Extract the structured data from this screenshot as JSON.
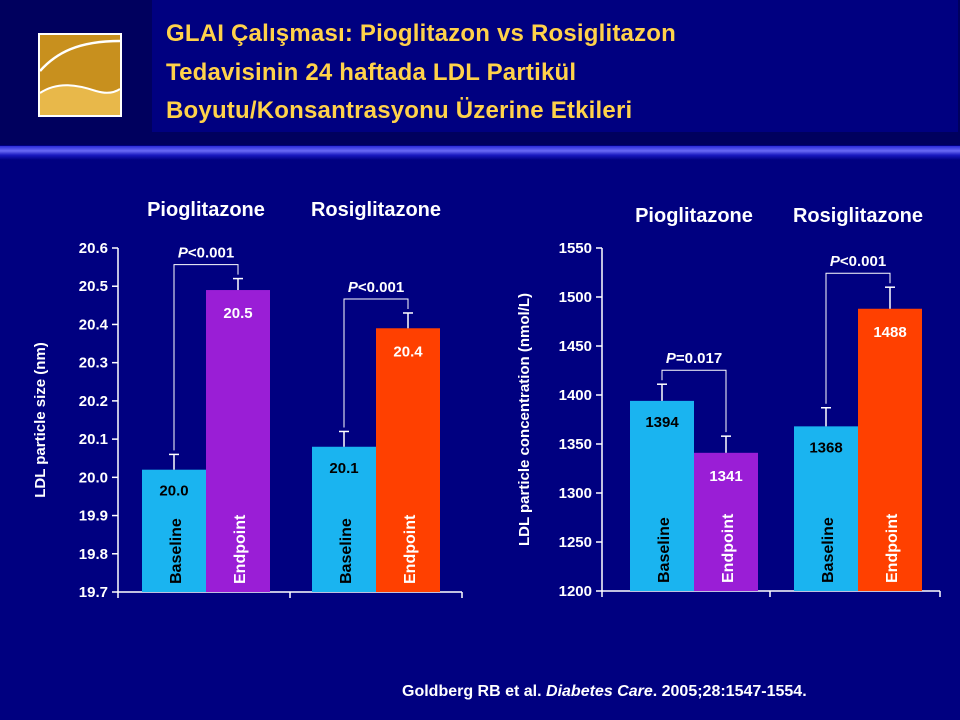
{
  "title": {
    "line1": "GLAI Çalışması: Pioglitazon vs Rosiglitazon",
    "line2": "Tedavisinin 24 haftada LDL Partikül",
    "line3": "Boyutu/Konsantrasyonu Üzerine Etkileri"
  },
  "citation": {
    "authors": "Goldberg RB et al. ",
    "journal": "Diabetes Care",
    "details": ". 2005;28:1547-1554."
  },
  "colors": {
    "background": "#000080",
    "title_text": "#ffd24a",
    "baseline_bar": "#1ab4f0",
    "pio_endpoint_bar": "#9a1ed6",
    "rosi_endpoint_bar": "#ff4000"
  },
  "chart_data": [
    {
      "type": "bar",
      "ylabel": "LDL particle size (nm)",
      "ylim": [
        19.7,
        20.6
      ],
      "ytick_step": 0.1,
      "yticks": [
        "20.6",
        "20.5",
        "20.4",
        "20.3",
        "20.2",
        "20.1",
        "20.0",
        "19.9",
        "19.8",
        "19.7"
      ],
      "groups": [
        {
          "label": "Pioglitazone",
          "p_value": "P<0.001",
          "bars": [
            {
              "label": "Baseline",
              "value": 20.02,
              "data_label": "20.0",
              "error": 0.04,
              "color": "#1ab4f0"
            },
            {
              "label": "Endpoint",
              "value": 20.49,
              "data_label": "20.5",
              "error": 0.03,
              "color": "#9a1ed6"
            }
          ]
        },
        {
          "label": "Rosiglitazone",
          "p_value": "P<0.001",
          "bars": [
            {
              "label": "Baseline",
              "value": 20.08,
              "data_label": "20.1",
              "error": 0.04,
              "color": "#1ab4f0"
            },
            {
              "label": "Endpoint",
              "value": 20.39,
              "data_label": "20.4",
              "error": 0.04,
              "color": "#ff4000"
            }
          ]
        }
      ]
    },
    {
      "type": "bar",
      "ylabel": "LDL particle concentration (nmol/L)",
      "ylim": [
        1200,
        1550
      ],
      "ytick_step": 50,
      "yticks": [
        "1550",
        "1500",
        "1450",
        "1400",
        "1350",
        "1300",
        "1250",
        "1200"
      ],
      "groups": [
        {
          "label": "Pioglitazone",
          "p_value": "P=0.017",
          "bars": [
            {
              "label": "Baseline",
              "value": 1394,
              "data_label": "1394",
              "error": 17,
              "color": "#1ab4f0"
            },
            {
              "label": "Endpoint",
              "value": 1341,
              "data_label": "1341",
              "error": 17,
              "color": "#9a1ed6"
            }
          ]
        },
        {
          "label": "Rosiglitazone",
          "p_value": "P<0.001",
          "bars": [
            {
              "label": "Baseline",
              "value": 1368,
              "data_label": "1368",
              "error": 19,
              "color": "#1ab4f0"
            },
            {
              "label": "Endpoint",
              "value": 1488,
              "data_label": "1488",
              "error": 22,
              "color": "#ff4000"
            }
          ]
        }
      ]
    }
  ]
}
